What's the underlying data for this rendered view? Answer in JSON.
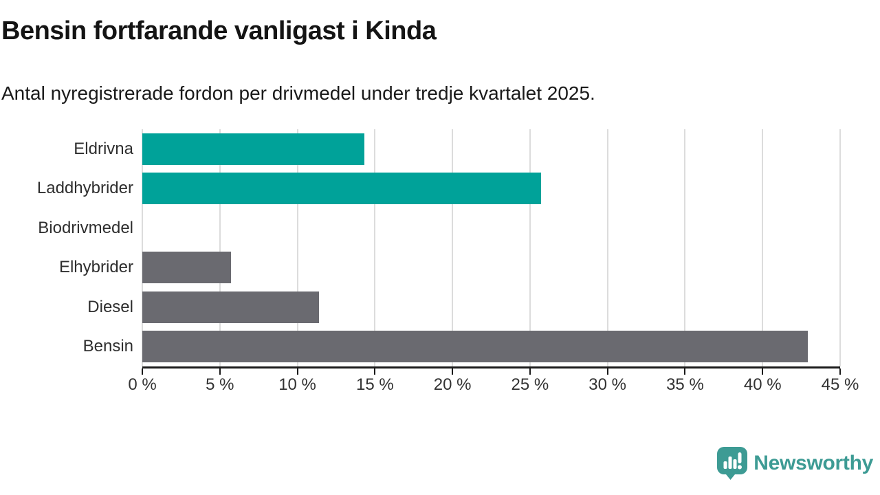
{
  "header": {
    "title": "Bensin fortfarande vanligast i Kinda",
    "subtitle": "Antal nyregistrerade fordon per drivmedel under tredje kvartalet 2025."
  },
  "chart_data": {
    "type": "bar",
    "orientation": "horizontal",
    "title": "Bensin fortfarande vanligast i Kinda",
    "subtitle": "Antal nyregistrerade fordon per drivmedel under tredje kvartalet 2025.",
    "categories": [
      "Eldrivna",
      "Laddhybrider",
      "Biodrivmedel",
      "Elhybrider",
      "Diesel",
      "Bensin"
    ],
    "values": [
      14.3,
      25.7,
      0,
      5.7,
      11.4,
      42.9
    ],
    "unit": "%",
    "xlim": [
      0,
      45
    ],
    "x_ticks": [
      0,
      5,
      10,
      15,
      20,
      25,
      30,
      35,
      40,
      45
    ],
    "x_tick_labels": [
      "0 %",
      "5 %",
      "10 %",
      "15 %",
      "20 %",
      "25 %",
      "30 %",
      "35 %",
      "40 %",
      "45 %"
    ],
    "grid": "vertical-on",
    "legend": "none",
    "bar_colors": [
      "#00A299",
      "#00A299",
      "#6A6A70",
      "#6A6A70",
      "#6A6A70",
      "#6A6A70"
    ],
    "highlight_color": "#00A299",
    "base_color": "#6A6A70",
    "grid_color": "#dcdcdc",
    "axis_color": "#1a1a1a"
  },
  "footer": {
    "brand": "Newsworthy",
    "brand_color": "#3D9B94",
    "logo_icon": "newsworthy-speech-bubble-chart-icon"
  }
}
